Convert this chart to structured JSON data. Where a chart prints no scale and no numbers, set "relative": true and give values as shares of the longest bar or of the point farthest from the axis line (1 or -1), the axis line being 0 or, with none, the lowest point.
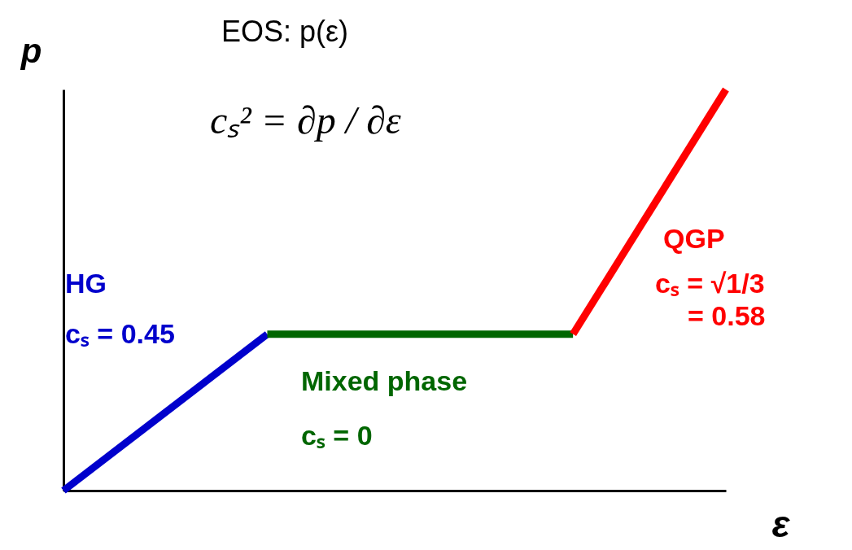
{
  "chart_data": {
    "type": "line",
    "title": "EOS: p(ε)",
    "subtitle": "cₛ² = ∂p / ∂ε",
    "xlabel": "ε",
    "ylabel": "p",
    "relative": true,
    "tick_labels": false,
    "grid": false,
    "marker": "none",
    "line_style": "solid",
    "categories": [
      null,
      null,
      null,
      null,
      null,
      null,
      null,
      null,
      null,
      null,
      null,
      null,
      null,
      null
    ],
    "series": [
      {
        "name": "HG",
        "color": "#0000cc",
        "values": [
          0,
          null,
          null,
          null,
          0.39,
          null,
          null,
          null,
          null,
          null,
          null,
          null,
          null,
          null
        ]
      },
      {
        "name": "Mixed phase",
        "color": "#006600",
        "values": [
          null,
          null,
          null,
          null,
          0.39,
          null,
          null,
          null,
          null,
          null,
          0.39,
          null,
          null,
          null
        ]
      },
      {
        "name": "QGP",
        "color": "#ff0000",
        "values": [
          null,
          null,
          null,
          null,
          null,
          null,
          null,
          null,
          null,
          null,
          0.39,
          null,
          null,
          1
        ]
      }
    ],
    "annotations": [
      "cₛ = 0.45",
      "cₛ = 0",
      "cₛ = √1/3",
      "= 0.58"
    ]
  }
}
